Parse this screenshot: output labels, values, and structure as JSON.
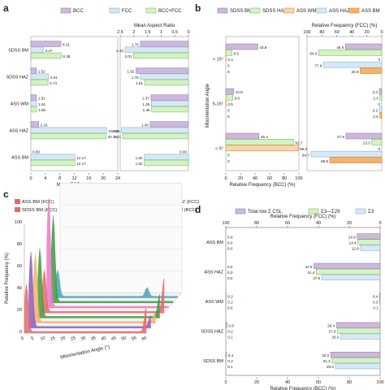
{
  "panels": {
    "a": "a",
    "b": "b",
    "c": "c",
    "d": "d"
  },
  "colors": {
    "purple": "#cdb8dc",
    "blue": "#d6e8f5",
    "green": "#d4f2c5",
    "red": "#e36a6a",
    "pink": "#ea79c8",
    "orange": "#f6b26b",
    "darkgreen": "#3f9a3c",
    "teal": "#4aa5b4",
    "violet": "#8a5bbf",
    "edge_purple": "#9b80b3",
    "edge_blue": "#8cb5d8",
    "edge_green": "#7fbf5e",
    "edge_orange": "#e08a2d",
    "orange_fill": "#f8d5ad"
  },
  "chart_data": [
    {
      "panel": "a",
      "type": "bar",
      "orientation": "horizontal",
      "legend": [
        "BCC",
        "FCC",
        "BCC+FCC"
      ],
      "categories": [
        "SDSS BM",
        "SDSS HAZ",
        "ASS WM",
        "ASS HAZ",
        "ASS BM"
      ],
      "left": {
        "xlabel": "Mean ECD (μm)",
        "xlim": [
          0,
          24
        ],
        "xticks": [
          "0",
          "4",
          "8",
          "12",
          "16",
          "20",
          "24"
        ],
        "series": [
          {
            "name": "BCC",
            "values": [
              8.31,
              1.52,
              1.52,
              2.16,
              0.0
            ],
            "labels": [
              "8.31",
              "1.52",
              "1.52",
              "2.16",
              "0.00"
            ]
          },
          {
            "name": "FCC",
            "values": [
              3.47,
              4.91,
              1.61,
              20.96,
              12.17
            ],
            "labels": [
              "3.47",
              "4.91",
              "1.61",
              "20.96",
              "12.17"
            ]
          },
          {
            "name": "BCC+FCC",
            "values": [
              8.38,
              4.74,
              1.6,
              20.75,
              12.17
            ],
            "labels": [
              "8.38",
              "4.74",
              "1.60",
              "20.75",
              "12.17"
            ]
          }
        ]
      },
      "right": {
        "title": "Mean Aspect Ratio",
        "xlim": [
          2.5,
          0
        ],
        "xticks": [
          "2.5",
          "2",
          "1.5",
          "1",
          "0.5",
          "0"
        ],
        "series": [
          {
            "name": "BCC",
            "values": [
              1.76,
              1.92,
              1.37,
              1.4,
              0.0
            ],
            "labels": [
              "1.76",
              "1.92",
              "1.37",
              "1.40",
              "0.00"
            ]
          },
          {
            "name": "FCC",
            "values": [
              2.32,
              1.76,
              1.36,
              2.46,
              1.62
            ],
            "labels": [
              "2.32",
              "1.76",
              "1.36",
              "2.46",
              "1.62"
            ]
          },
          {
            "name": "BCC+FCC",
            "values": [
              2.01,
              1.61,
              1.35,
              2.41,
              1.62
            ],
            "labels": [
              "2.01",
              "1.61",
              "1.35",
              "2.41",
              "1.62"
            ]
          }
        ]
      }
    },
    {
      "panel": "b",
      "type": "bar",
      "orientation": "horizontal",
      "legend": [
        "SDSS BM",
        "SDSS HAZ",
        "ASS WM",
        "ASS HAZ",
        "ASS BM"
      ],
      "ylabel": "Misorientation Angle",
      "categories": [
        "> 15°",
        "5-15°",
        "< 5°"
      ],
      "left": {
        "xlabel": "Relative Frequency (BCC) (%)",
        "xlim": [
          0,
          100
        ],
        "xticks": [
          "0",
          "20",
          "40",
          "60",
          "80",
          "100"
        ],
        "series": [
          {
            "name": "SDSS BM",
            "values": [
              43.8,
              10.8,
              45.4
            ],
            "labels": [
              "43.8",
              "10.8",
              "45.4"
            ]
          },
          {
            "name": "SDSS HAZ",
            "values": [
              8.5,
              9.6,
              92.7
            ],
            "labels": [
              "8.5",
              "9.6",
              "92.7"
            ]
          },
          {
            "name": "ASS WM",
            "values": [
              0.4,
              0.5,
              99.0
            ],
            "labels": [
              "0.4",
              "0.5",
              "99.0"
            ]
          },
          {
            "name": "ASS HAZ",
            "values": [
              0,
              0,
              0
            ],
            "labels": [
              "0",
              "0",
              "0"
            ]
          },
          {
            "name": "ASS BM",
            "values": [
              0,
              0,
              0
            ],
            "labels": [
              "0",
              "0",
              "0"
            ]
          }
        ]
      },
      "right": {
        "title": "Relative Frequency (FCC) (%)",
        "xlim": [
          100,
          0
        ],
        "xticks": [
          "100",
          "80",
          "60",
          "40",
          "20",
          "0"
        ],
        "series": [
          {
            "name": "SDSS BM",
            "values": [
              48.6,
              3.4,
              47.9
            ],
            "labels": [
              "48.6",
              "3.4",
              "47.9"
            ]
          },
          {
            "name": "SDSS HAZ",
            "values": [
              84.4,
              2.4,
              13.3
            ],
            "labels": [
              "84.4",
              "2.4",
              "13.3"
            ]
          },
          {
            "name": "ASS WM",
            "values": [
              0,
              0,
              0
            ],
            "labels": [
              "0",
              "0",
              "0"
            ]
          },
          {
            "name": "ASS HAZ",
            "values": [
              77.9,
              3.2,
              94.7
            ],
            "labels": [
              "77.9",
              "3.2",
              "94.7"
            ]
          },
          {
            "name": "ASS BM",
            "values": [
              28.9,
              2.5,
              69.5
            ],
            "labels": [
              "28.9",
              "2.5",
              "69.5"
            ]
          }
        ]
      }
    },
    {
      "panel": "c",
      "type": "area",
      "view": "3d-waterfall",
      "ylabel": "Relative Frequency (%)",
      "xlabel": "Misorientation  Angle (°)",
      "ylim": [
        0,
        100
      ],
      "yticks": [
        "0",
        "20",
        "40",
        "60",
        "80",
        "100"
      ],
      "xticks": [
        "0",
        "5",
        "10",
        "15",
        "20",
        "25",
        "30",
        "35",
        "40",
        "45",
        "50",
        "55",
        "60"
      ],
      "legend": [
        "ASS BM (FCC)",
        "ASS HAZ (FCC)",
        "ASS WM (FCC)",
        "SDSS HAZ (FCC)",
        "SDSS BM (FCC)",
        "ASS WM (BCC)",
        "SDSS HAZ (BCC)",
        "SDSS BM (BCC)"
      ],
      "series": [
        {
          "name": "ASS BM (FCC)",
          "peaks": [
            [
              1,
              43
            ],
            [
              60,
              22
            ]
          ]
        },
        {
          "name": "ASS HAZ (FCC)",
          "peaks": [
            [
              1,
              68
            ],
            [
              60,
              10
            ]
          ]
        },
        {
          "name": "ASS WM (FCC)",
          "peaks": [
            [
              1,
              62
            ],
            [
              60,
              8
            ]
          ]
        },
        {
          "name": "SDSS HAZ (FCC)",
          "peaks": [
            [
              1,
              62
            ],
            [
              60,
              20
            ]
          ]
        },
        {
          "name": "SDSS BM (FCC)",
          "peaks": [
            [
              1,
              38
            ],
            [
              60,
              30
            ]
          ]
        },
        {
          "name": "ASS WM (BCC)",
          "peaks": [
            [
              1,
              100
            ]
          ]
        },
        {
          "name": "SDSS HAZ (BCC)",
          "peaks": [
            [
              1,
              78
            ]
          ]
        },
        {
          "name": "SDSS BM (BCC)",
          "peaks": [
            [
              1,
              24
            ],
            [
              45,
              8
            ]
          ]
        }
      ]
    },
    {
      "panel": "d",
      "type": "bar",
      "orientation": "horizontal",
      "legend": [
        "Total low Σ CSL",
        "Σ3—Σ29",
        "Σ3"
      ],
      "categories": [
        "ASS BM",
        "ASS HAZ",
        "ASS WM",
        "SDSS HAZ",
        "SDSS BM"
      ],
      "left": {
        "xlabel": "Relative Frequency (BCC) (%)",
        "xlim": [
          0,
          100
        ],
        "xticks": [
          "0",
          "20",
          "40",
          "60",
          "80",
          "100"
        ],
        "series": [
          {
            "name": "Total low Σ CSL",
            "values": [
              0.0,
              0.0,
              0.2,
              0.8,
              0.4
            ],
            "labels": [
              "0.0",
              "0.0",
              "0.2",
              "0.8",
              "0.4"
            ]
          },
          {
            "name": "Σ3—Σ29",
            "values": [
              0.0,
              0.0,
              0.2,
              0.2,
              0.2
            ],
            "labels": [
              "0.0",
              "0.0",
              "0.2",
              "0.2",
              "0.2"
            ]
          },
          {
            "name": "Σ3",
            "values": [
              0.0,
              0.0,
              0.0,
              0.1,
              0.1
            ],
            "labels": [
              "0.0",
              "0.0",
              "0.0",
              "0.1",
              "0.1"
            ]
          }
        ]
      },
      "right": {
        "title": "Relative Frequency (FCC) (%)",
        "xlim": [
          100,
          0
        ],
        "xticks": [
          "100",
          "80",
          "60",
          "40",
          "20",
          "0"
        ],
        "series": [
          {
            "name": "Total low Σ CSL",
            "values": [
              14.9,
              42.9,
              0.4,
              28.4,
              32.0
            ],
            "labels": [
              "14.9",
              "42.9",
              "0.4",
              "28.4",
              "32.0"
            ]
          },
          {
            "name": "Σ3—Σ29",
            "values": [
              14.4,
              41.4,
              0.3,
              27.6,
              31.2
            ],
            "labels": [
              "14.4",
              "41.4",
              "0.3",
              "27.6",
              "31.2"
            ]
          },
          {
            "name": "Σ3",
            "values": [
              12.8,
              37.8,
              0.1,
              25.5,
              29.0
            ],
            "labels": [
              "12.8",
              "37.8",
              "0.1",
              "25.5",
              "29.0"
            ]
          }
        ]
      }
    }
  ]
}
